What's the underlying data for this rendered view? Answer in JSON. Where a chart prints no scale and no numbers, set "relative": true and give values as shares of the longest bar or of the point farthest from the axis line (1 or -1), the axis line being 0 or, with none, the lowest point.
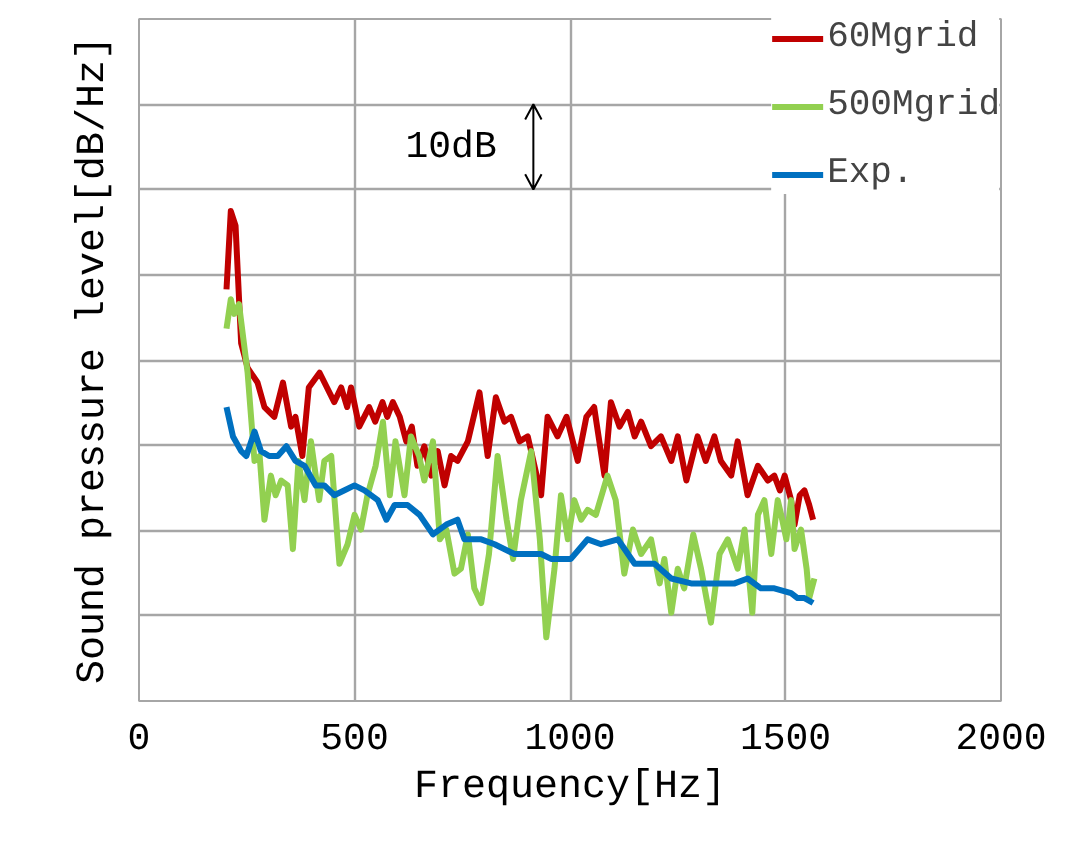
{
  "chart_data": {
    "type": "line",
    "relative": true,
    "xlabel": "Frequency[Hz]",
    "ylabel": "Sound pressure level[dB/Hz]",
    "xlim": [
      0,
      2000
    ],
    "xticks": [
      0,
      500,
      1000,
      1500,
      2000
    ],
    "grid": true,
    "legend": "top right",
    "marker": "none",
    "line_style": "solid",
    "annotations": [
      "10dB"
    ],
    "series": [
      {
        "name": "60Mgrid",
        "color": "#c00000",
        "x": [
          203,
          213,
          224,
          237,
          252,
          275,
          291,
          314,
          334,
          353,
          363,
          379,
          394,
          419,
          453,
          469,
          483,
          492,
          511,
          534,
          548,
          565,
          576,
          589,
          605,
          620,
          633,
          646,
          662,
          678,
          693,
          709,
          724,
          739,
          763,
          790,
          809,
          828,
          848,
          863,
          883,
          902,
          933,
          948,
          971,
          992,
          1018,
          1038,
          1056,
          1080,
          1095,
          1115,
          1134,
          1150,
          1165,
          1188,
          1211,
          1235,
          1250,
          1270,
          1296,
          1315,
          1335,
          1350,
          1374,
          1389,
          1412,
          1436,
          1459,
          1474,
          1487,
          1498,
          1513,
          1521,
          1533,
          1544,
          1555,
          1564
        ],
        "values": [
          0.84,
          1.0,
          0.97,
          0.73,
          0.68,
          0.65,
          0.6,
          0.58,
          0.65,
          0.56,
          0.58,
          0.5,
          0.64,
          0.67,
          0.61,
          0.64,
          0.6,
          0.64,
          0.56,
          0.6,
          0.57,
          0.61,
          0.58,
          0.61,
          0.58,
          0.53,
          0.56,
          0.48,
          0.52,
          0.46,
          0.51,
          0.44,
          0.5,
          0.49,
          0.53,
          0.63,
          0.5,
          0.62,
          0.57,
          0.58,
          0.53,
          0.54,
          0.42,
          0.58,
          0.54,
          0.58,
          0.49,
          0.58,
          0.6,
          0.46,
          0.61,
          0.56,
          0.59,
          0.54,
          0.57,
          0.52,
          0.54,
          0.49,
          0.54,
          0.45,
          0.54,
          0.49,
          0.54,
          0.49,
          0.46,
          0.53,
          0.42,
          0.48,
          0.45,
          0.46,
          0.43,
          0.46,
          0.41,
          0.36,
          0.42,
          0.43,
          0.4,
          0.37
        ]
      },
      {
        "name": "500Mgrid",
        "color": "#92d050",
        "x": [
          203,
          213,
          221,
          232,
          252,
          268,
          280,
          291,
          306,
          317,
          330,
          345,
          357,
          370,
          384,
          399,
          418,
          430,
          446,
          465,
          484,
          500,
          515,
          530,
          549,
          566,
          582,
          595,
          616,
          631,
          650,
          662,
          682,
          698,
          713,
          732,
          747,
          763,
          778,
          794,
          812,
          832,
          853,
          868,
          886,
          910,
          930,
          945,
          964,
          979,
          995,
          1010,
          1026,
          1041,
          1060,
          1087,
          1106,
          1126,
          1146,
          1165,
          1188,
          1208,
          1219,
          1235,
          1250,
          1265,
          1286,
          1304,
          1327,
          1347,
          1366,
          1389,
          1405,
          1423,
          1436,
          1451,
          1467,
          1482,
          1490,
          1502,
          1513,
          1521,
          1536,
          1549,
          1555,
          1567
        ],
        "values": [
          0.76,
          0.82,
          0.79,
          0.81,
          0.67,
          0.49,
          0.5,
          0.37,
          0.46,
          0.42,
          0.45,
          0.44,
          0.31,
          0.49,
          0.41,
          0.53,
          0.41,
          0.49,
          0.5,
          0.28,
          0.32,
          0.38,
          0.35,
          0.42,
          0.48,
          0.57,
          0.42,
          0.53,
          0.42,
          0.54,
          0.5,
          0.45,
          0.53,
          0.33,
          0.35,
          0.26,
          0.27,
          0.34,
          0.23,
          0.2,
          0.3,
          0.5,
          0.37,
          0.29,
          0.41,
          0.51,
          0.33,
          0.13,
          0.27,
          0.42,
          0.33,
          0.41,
          0.37,
          0.39,
          0.38,
          0.46,
          0.41,
          0.26,
          0.35,
          0.3,
          0.33,
          0.24,
          0.29,
          0.18,
          0.27,
          0.23,
          0.34,
          0.27,
          0.16,
          0.3,
          0.33,
          0.27,
          0.35,
          0.18,
          0.38,
          0.41,
          0.3,
          0.41,
          0.38,
          0.33,
          0.41,
          0.31,
          0.35,
          0.27,
          0.21,
          0.25
        ]
      },
      {
        "name": "Exp.",
        "color": "#0070c0",
        "x": [
          203,
          218,
          237,
          249,
          268,
          283,
          302,
          322,
          342,
          363,
          384,
          410,
          430,
          453,
          477,
          500,
          523,
          554,
          574,
          593,
          623,
          651,
          682,
          713,
          739,
          755,
          794,
          825,
          871,
          933,
          956,
          1002,
          1041,
          1072,
          1111,
          1150,
          1196,
          1235,
          1281,
          1335,
          1382,
          1412,
          1443,
          1474,
          1513,
          1528,
          1544,
          1564
        ],
        "values": [
          0.6,
          0.54,
          0.51,
          0.5,
          0.55,
          0.51,
          0.5,
          0.5,
          0.52,
          0.49,
          0.48,
          0.44,
          0.44,
          0.42,
          0.43,
          0.44,
          0.43,
          0.41,
          0.37,
          0.4,
          0.4,
          0.38,
          0.34,
          0.36,
          0.37,
          0.33,
          0.33,
          0.32,
          0.3,
          0.3,
          0.29,
          0.29,
          0.33,
          0.32,
          0.33,
          0.28,
          0.28,
          0.25,
          0.24,
          0.24,
          0.24,
          0.25,
          0.23,
          0.23,
          0.22,
          0.21,
          0.21,
          0.2
        ]
      }
    ]
  }
}
